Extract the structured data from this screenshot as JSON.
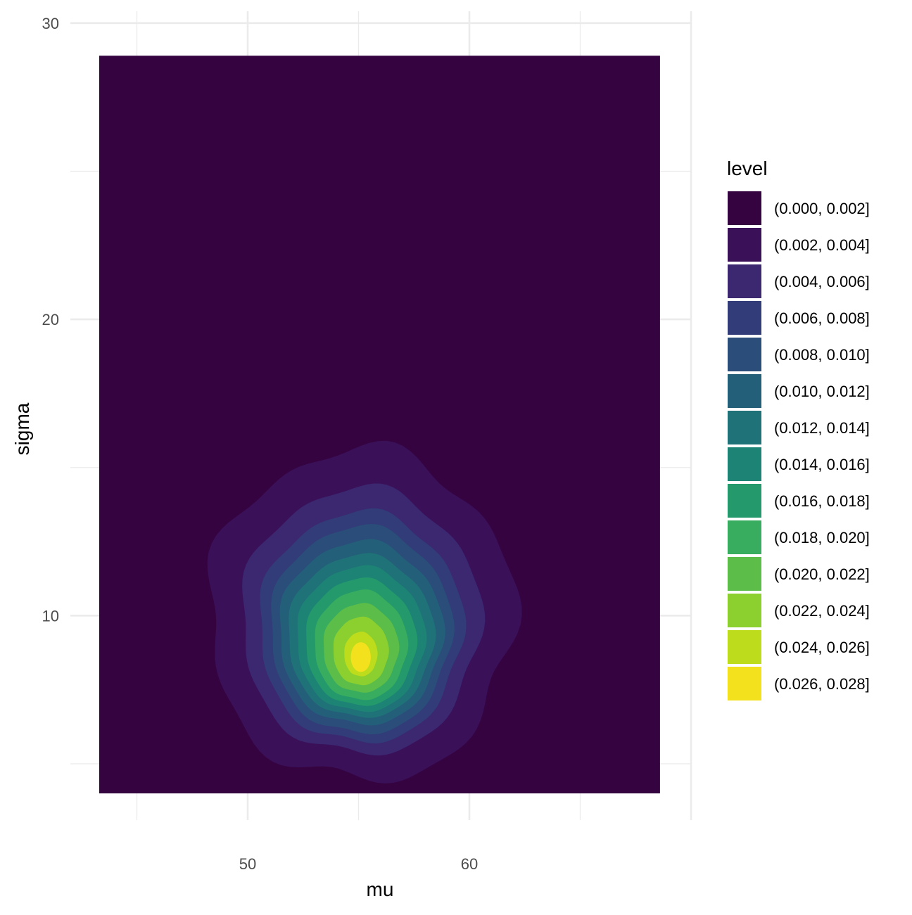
{
  "chart_data": {
    "type": "contour-filled",
    "xlabel": "mu",
    "ylabel": "sigma",
    "xlim": [
      42.0,
      70.0
    ],
    "ylim": [
      3.1,
      30.4
    ],
    "x_ticks": [
      50,
      60
    ],
    "y_ticks": [
      10,
      20,
      30
    ],
    "data_extent": {
      "x": [
        43.3,
        68.6
      ],
      "y": [
        4.0,
        28.9
      ]
    },
    "grid": true,
    "legend": {
      "title": "level",
      "position": "right",
      "entries": [
        {
          "label": "(0.000, 0.002]",
          "color": "#360341"
        },
        {
          "label": "(0.002, 0.004]",
          "color": "#3a1059"
        },
        {
          "label": "(0.004, 0.006]",
          "color": "#3b2870"
        },
        {
          "label": "(0.006, 0.008]",
          "color": "#323c78"
        },
        {
          "label": "(0.008, 0.010]",
          "color": "#2a4d7a"
        },
        {
          "label": "(0.010, 0.012]",
          "color": "#245f7a"
        },
        {
          "label": "(0.012, 0.014]",
          "color": "#1f7277"
        },
        {
          "label": "(0.014, 0.016]",
          "color": "#1d8475"
        },
        {
          "label": "(0.016, 0.018]",
          "color": "#23996c"
        },
        {
          "label": "(0.018, 0.020]",
          "color": "#38ac5f"
        },
        {
          "label": "(0.020, 0.022]",
          "color": "#5cbd48"
        },
        {
          "label": "(0.022, 0.024]",
          "color": "#8bd02f"
        },
        {
          "label": "(0.024, 0.026]",
          "color": "#bddc1c"
        },
        {
          "label": "(0.026, 0.028]",
          "color": "#f4e11d"
        }
      ]
    },
    "density_mode": {
      "mu": 55.1,
      "sigma": 8.6
    },
    "contours": [
      {
        "level": 1,
        "cx": 55.1,
        "cy": 10.0,
        "rx": 6.9,
        "ry": 5.6,
        "wobble": 0.07
      },
      {
        "level": 2,
        "cx": 55.1,
        "cy": 9.8,
        "rx": 5.4,
        "ry": 4.5,
        "wobble": 0.05
      },
      {
        "level": 3,
        "cx": 55.1,
        "cy": 9.6,
        "rx": 4.6,
        "ry": 3.9,
        "wobble": 0.045
      },
      {
        "level": 4,
        "cx": 55.1,
        "cy": 9.5,
        "rx": 4.1,
        "ry": 3.5,
        "wobble": 0.04
      },
      {
        "level": 5,
        "cx": 55.1,
        "cy": 9.4,
        "rx": 3.7,
        "ry": 3.1,
        "wobble": 0.04
      },
      {
        "level": 6,
        "cx": 55.1,
        "cy": 9.3,
        "rx": 3.3,
        "ry": 2.75,
        "wobble": 0.035
      },
      {
        "level": 7,
        "cx": 55.1,
        "cy": 9.2,
        "rx": 2.9,
        "ry": 2.45,
        "wobble": 0.035
      },
      {
        "level": 8,
        "cx": 55.1,
        "cy": 9.1,
        "rx": 2.5,
        "ry": 2.15,
        "wobble": 0.03
      },
      {
        "level": 9,
        "cx": 55.1,
        "cy": 9.0,
        "rx": 2.1,
        "ry": 1.85,
        "wobble": 0.03
      },
      {
        "level": 10,
        "cx": 55.1,
        "cy": 8.9,
        "rx": 1.7,
        "ry": 1.5,
        "wobble": 0.03
      },
      {
        "level": 11,
        "cx": 55.1,
        "cy": 8.8,
        "rx": 1.25,
        "ry": 1.15,
        "wobble": 0.025
      },
      {
        "level": 12,
        "cx": 55.1,
        "cy": 8.7,
        "rx": 0.75,
        "ry": 0.75,
        "wobble": 0.02
      },
      {
        "level": 13,
        "cx": 55.1,
        "cy": 8.6,
        "rx": 0.45,
        "ry": 0.5,
        "wobble": 0.0
      }
    ]
  }
}
